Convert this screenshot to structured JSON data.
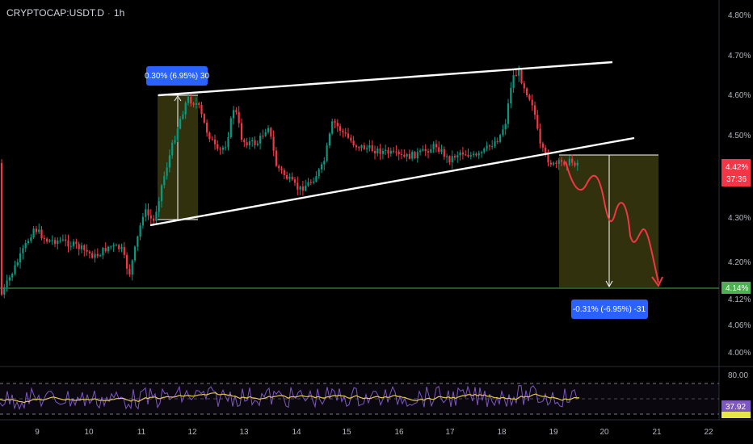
{
  "header": {
    "symbol": "CRYPTOCAP:USDT.D",
    "interval": "1h"
  },
  "colors": {
    "up": "#089981",
    "down": "#f23645",
    "line_white": "#ffffff",
    "green_line": "#4caf50",
    "rsi_line": "#7e57c2",
    "rsi_ma": "#e6c84a",
    "box_fill": "#3a3a0f",
    "tag_blue": "#2962ff"
  },
  "chart_data": {
    "type": "candlestick",
    "price_axis": {
      "ticks": [
        "4.80%",
        "4.70%",
        "4.60%",
        "4.50%",
        "4.42%",
        "4.30%",
        "4.20%",
        "4.12%",
        "4.06%",
        "4.00%"
      ]
    },
    "time_axis": {
      "ticks": [
        "9",
        "10",
        "11",
        "12",
        "13",
        "14",
        "15",
        "16",
        "17",
        "18",
        "19",
        "20",
        "21",
        "22"
      ]
    },
    "price_tags": [
      {
        "text": "4.42%",
        "sub": "37:36",
        "color": "#f23645"
      },
      {
        "text": "4.14%",
        "color": "#4caf50"
      }
    ],
    "measure_up": {
      "label": "0.30% (6.95%) 30"
    },
    "measure_down": {
      "label": "-0.31% (-6.95%) -31"
    },
    "rsi": {
      "ticks": [
        "80.00"
      ],
      "value": "37.92"
    }
  }
}
